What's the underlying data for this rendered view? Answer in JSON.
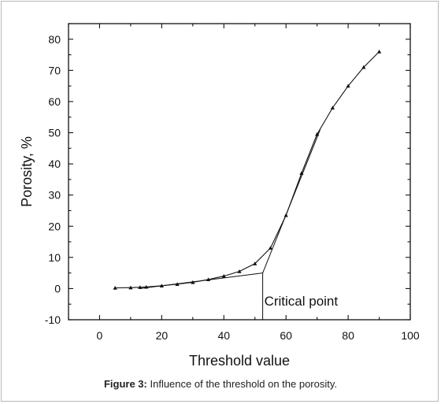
{
  "chart_data": {
    "type": "line",
    "xlabel": "Threshold value",
    "ylabel": "Porosity, %",
    "xlim": [
      -10,
      100
    ],
    "ylim": [
      -10,
      85
    ],
    "x_ticks": [
      "0",
      "20",
      "40",
      "60",
      "80",
      "100"
    ],
    "y_ticks": [
      "-10",
      "0",
      "10",
      "20",
      "30",
      "40",
      "50",
      "60",
      "70",
      "80"
    ],
    "grid": false,
    "series": [
      {
        "marker": "triangle",
        "x": [
          5,
          10,
          13,
          15,
          20,
          25,
          30,
          35,
          40,
          45,
          50,
          55,
          60,
          65,
          70,
          75,
          80,
          85,
          90
        ],
        "y": [
          0.2,
          0.3,
          0.4,
          0.5,
          0.9,
          1.4,
          2.0,
          2.9,
          4.0,
          5.5,
          8.0,
          13.0,
          23.5,
          37.0,
          49.5,
          58.0,
          65.0,
          71.0,
          76.0
        ]
      }
    ],
    "tangent_lines": [
      {
        "x": [
          13,
          52.5
        ],
        "y": [
          0,
          5
        ]
      },
      {
        "x": [
          52.5,
          71
        ],
        "y": [
          5,
          51
        ]
      }
    ],
    "annotation": {
      "text": "Critical point",
      "x": 52.5,
      "y": 5
    }
  },
  "caption": {
    "label": "Figure 3:",
    "text": " Influence of the threshold on the porosity."
  }
}
